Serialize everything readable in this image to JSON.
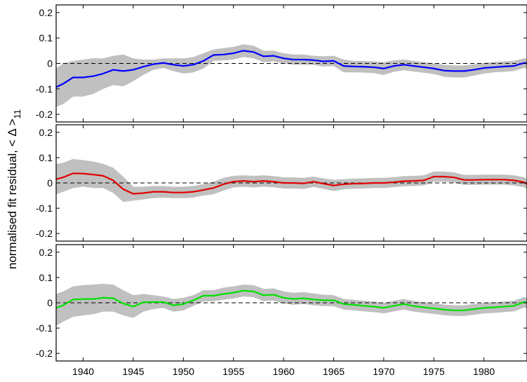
{
  "chart_data": {
    "type": "line",
    "ylabel": "normalised fit residual, < Δ >",
    "ylabel_subscript": "11",
    "xlim": [
      1937.3,
      1984.3
    ],
    "ylim": [
      -0.23,
      0.23
    ],
    "xticks": [
      1940,
      1945,
      1950,
      1955,
      1960,
      1965,
      1970,
      1975,
      1980
    ],
    "xtick_labels": [
      "1940",
      "1945",
      "1950",
      "1955",
      "1960",
      "1965",
      "1970",
      "1975",
      "1980"
    ],
    "yticks": [
      0.2,
      0.1,
      0,
      -0.1,
      -0.2
    ],
    "ytick_labels": [
      "0.2",
      "0.1",
      "0",
      "-0.1",
      "-0.2"
    ],
    "zero_line": "dashed",
    "band_color": "#c0c0c0",
    "panels": [
      {
        "color": "#0000ff",
        "x": [
          1937.3,
          1938.0,
          1939.0,
          1940.0,
          1941.0,
          1942.0,
          1943.0,
          1944.0,
          1945.0,
          1946.0,
          1947.0,
          1948.0,
          1949.0,
          1950.0,
          1951.0,
          1952.0,
          1953.0,
          1954.0,
          1955.0,
          1956.0,
          1957.0,
          1958.0,
          1959.0,
          1960.0,
          1961.0,
          1962.0,
          1963.0,
          1964.0,
          1965.0,
          1966.0,
          1967.0,
          1968.0,
          1969.0,
          1970.0,
          1971.0,
          1972.0,
          1973.0,
          1974.0,
          1975.0,
          1976.0,
          1977.0,
          1978.0,
          1979.0,
          1980.0,
          1981.0,
          1982.0,
          1983.0,
          1984.0,
          1984.3
        ],
        "values": [
          -0.093,
          -0.08,
          -0.055,
          -0.055,
          -0.05,
          -0.04,
          -0.025,
          -0.03,
          -0.025,
          -0.013,
          -0.003,
          0.002,
          -0.005,
          -0.01,
          -0.005,
          0.01,
          0.033,
          0.035,
          0.04,
          0.05,
          0.045,
          0.028,
          0.03,
          0.02,
          0.015,
          0.015,
          0.013,
          0.008,
          0.01,
          -0.01,
          -0.012,
          -0.013,
          -0.015,
          -0.02,
          -0.01,
          -0.005,
          -0.01,
          -0.015,
          -0.02,
          -0.028,
          -0.03,
          -0.03,
          -0.025,
          -0.018,
          -0.015,
          -0.012,
          -0.01,
          0.002,
          0.0
        ],
        "band_upper": [
          -0.02,
          0.0,
          0.01,
          0.015,
          0.02,
          0.02,
          0.03,
          0.035,
          0.02,
          0.015,
          0.015,
          0.02,
          0.02,
          0.02,
          0.025,
          0.04,
          0.055,
          0.06,
          0.065,
          0.075,
          0.07,
          0.05,
          0.05,
          0.04,
          0.035,
          0.035,
          0.03,
          0.028,
          0.03,
          0.015,
          0.01,
          0.01,
          0.008,
          0.005,
          0.012,
          0.015,
          0.01,
          0.005,
          0.0,
          -0.005,
          -0.008,
          -0.008,
          -0.003,
          0.002,
          0.005,
          0.008,
          0.01,
          0.02,
          0.018
        ],
        "band_lower": [
          -0.17,
          -0.16,
          -0.13,
          -0.13,
          -0.12,
          -0.1,
          -0.085,
          -0.09,
          -0.07,
          -0.045,
          -0.025,
          -0.018,
          -0.03,
          -0.04,
          -0.035,
          -0.02,
          0.01,
          0.012,
          0.015,
          0.025,
          0.02,
          0.005,
          0.008,
          0.0,
          -0.005,
          -0.005,
          -0.006,
          -0.012,
          -0.01,
          -0.035,
          -0.035,
          -0.036,
          -0.038,
          -0.045,
          -0.033,
          -0.027,
          -0.032,
          -0.037,
          -0.042,
          -0.052,
          -0.055,
          -0.055,
          -0.048,
          -0.04,
          -0.035,
          -0.033,
          -0.03,
          -0.018,
          -0.02
        ]
      },
      {
        "color": "#e00000",
        "x": [
          1937.3,
          1938.0,
          1939.0,
          1940.0,
          1941.0,
          1942.0,
          1943.0,
          1944.0,
          1945.0,
          1946.0,
          1947.0,
          1948.0,
          1949.0,
          1950.0,
          1951.0,
          1952.0,
          1953.0,
          1954.0,
          1955.0,
          1956.0,
          1957.0,
          1958.0,
          1959.0,
          1960.0,
          1961.0,
          1962.0,
          1963.0,
          1964.0,
          1965.0,
          1966.0,
          1967.0,
          1968.0,
          1969.0,
          1970.0,
          1971.0,
          1972.0,
          1973.0,
          1974.0,
          1975.0,
          1976.0,
          1977.0,
          1978.0,
          1979.0,
          1980.0,
          1981.0,
          1982.0,
          1983.0,
          1984.0,
          1984.3
        ],
        "values": [
          0.015,
          0.022,
          0.038,
          0.037,
          0.033,
          0.028,
          0.01,
          -0.025,
          -0.043,
          -0.04,
          -0.035,
          -0.035,
          -0.038,
          -0.038,
          -0.035,
          -0.028,
          -0.02,
          -0.005,
          0.005,
          0.008,
          0.005,
          0.008,
          0.005,
          0.0,
          0.0,
          -0.002,
          0.005,
          -0.003,
          -0.01,
          -0.005,
          -0.003,
          -0.002,
          0.0,
          0.0,
          0.003,
          0.007,
          0.008,
          0.01,
          0.025,
          0.025,
          0.022,
          0.012,
          0.012,
          0.013,
          0.013,
          0.013,
          0.01,
          0.003,
          -0.005
        ],
        "band_upper": [
          0.075,
          0.08,
          0.095,
          0.09,
          0.085,
          0.075,
          0.06,
          0.025,
          -0.015,
          -0.015,
          -0.012,
          -0.012,
          -0.015,
          -0.015,
          -0.012,
          -0.005,
          0.005,
          0.02,
          0.028,
          0.03,
          0.028,
          0.03,
          0.027,
          0.022,
          0.022,
          0.02,
          0.025,
          0.018,
          0.012,
          0.015,
          0.017,
          0.018,
          0.02,
          0.02,
          0.023,
          0.027,
          0.028,
          0.03,
          0.045,
          0.045,
          0.042,
          0.032,
          0.032,
          0.033,
          0.033,
          0.033,
          0.03,
          0.023,
          0.015
        ],
        "band_lower": [
          -0.045,
          -0.035,
          -0.02,
          -0.015,
          -0.02,
          -0.02,
          -0.04,
          -0.075,
          -0.07,
          -0.065,
          -0.06,
          -0.058,
          -0.06,
          -0.06,
          -0.058,
          -0.05,
          -0.045,
          -0.03,
          -0.018,
          -0.015,
          -0.018,
          -0.015,
          -0.017,
          -0.022,
          -0.022,
          -0.024,
          -0.016,
          -0.024,
          -0.032,
          -0.025,
          -0.023,
          -0.022,
          -0.02,
          -0.02,
          -0.017,
          -0.013,
          -0.012,
          -0.01,
          0.005,
          0.005,
          0.002,
          -0.008,
          -0.008,
          -0.007,
          -0.007,
          -0.007,
          -0.01,
          -0.017,
          -0.025
        ]
      },
      {
        "color": "#00e000",
        "x": [
          1937.3,
          1938.0,
          1939.0,
          1940.0,
          1941.0,
          1942.0,
          1943.0,
          1944.0,
          1945.0,
          1946.0,
          1947.0,
          1948.0,
          1949.0,
          1950.0,
          1951.0,
          1952.0,
          1953.0,
          1954.0,
          1955.0,
          1956.0,
          1957.0,
          1958.0,
          1959.0,
          1960.0,
          1961.0,
          1962.0,
          1963.0,
          1964.0,
          1965.0,
          1966.0,
          1967.0,
          1968.0,
          1969.0,
          1970.0,
          1971.0,
          1972.0,
          1973.0,
          1974.0,
          1975.0,
          1976.0,
          1977.0,
          1978.0,
          1979.0,
          1980.0,
          1981.0,
          1982.0,
          1983.0,
          1984.0,
          1984.3
        ],
        "values": [
          -0.02,
          -0.01,
          0.013,
          0.015,
          0.015,
          0.02,
          0.018,
          -0.003,
          -0.015,
          0.002,
          0.003,
          0.003,
          -0.01,
          -0.005,
          0.01,
          0.028,
          0.028,
          0.035,
          0.04,
          0.048,
          0.045,
          0.03,
          0.032,
          0.02,
          0.015,
          0.018,
          0.013,
          0.01,
          0.01,
          -0.005,
          -0.008,
          -0.012,
          -0.015,
          -0.02,
          -0.012,
          -0.005,
          -0.013,
          -0.018,
          -0.022,
          -0.027,
          -0.03,
          -0.03,
          -0.025,
          -0.02,
          -0.018,
          -0.015,
          -0.012,
          0.003,
          0.0
        ],
        "band_upper": [
          0.035,
          0.045,
          0.065,
          0.07,
          0.072,
          0.075,
          0.072,
          0.05,
          0.03,
          0.035,
          0.03,
          0.025,
          0.015,
          0.02,
          0.03,
          0.05,
          0.05,
          0.06,
          0.065,
          0.072,
          0.07,
          0.055,
          0.057,
          0.045,
          0.04,
          0.042,
          0.037,
          0.032,
          0.03,
          0.015,
          0.012,
          0.008,
          0.005,
          0.0,
          0.008,
          0.015,
          0.007,
          0.002,
          -0.002,
          -0.007,
          -0.01,
          -0.01,
          -0.005,
          0.0,
          0.002,
          0.005,
          0.008,
          0.023,
          0.02
        ],
        "band_lower": [
          -0.09,
          -0.075,
          -0.055,
          -0.05,
          -0.045,
          -0.035,
          -0.035,
          -0.05,
          -0.06,
          -0.035,
          -0.025,
          -0.02,
          -0.035,
          -0.03,
          -0.012,
          0.006,
          0.006,
          0.012,
          0.017,
          0.025,
          0.022,
          0.007,
          0.009,
          -0.003,
          -0.008,
          -0.005,
          -0.01,
          -0.013,
          -0.013,
          -0.027,
          -0.03,
          -0.034,
          -0.037,
          -0.042,
          -0.034,
          -0.027,
          -0.035,
          -0.04,
          -0.044,
          -0.049,
          -0.052,
          -0.052,
          -0.047,
          -0.042,
          -0.04,
          -0.037,
          -0.034,
          -0.019,
          -0.022
        ]
      }
    ]
  }
}
